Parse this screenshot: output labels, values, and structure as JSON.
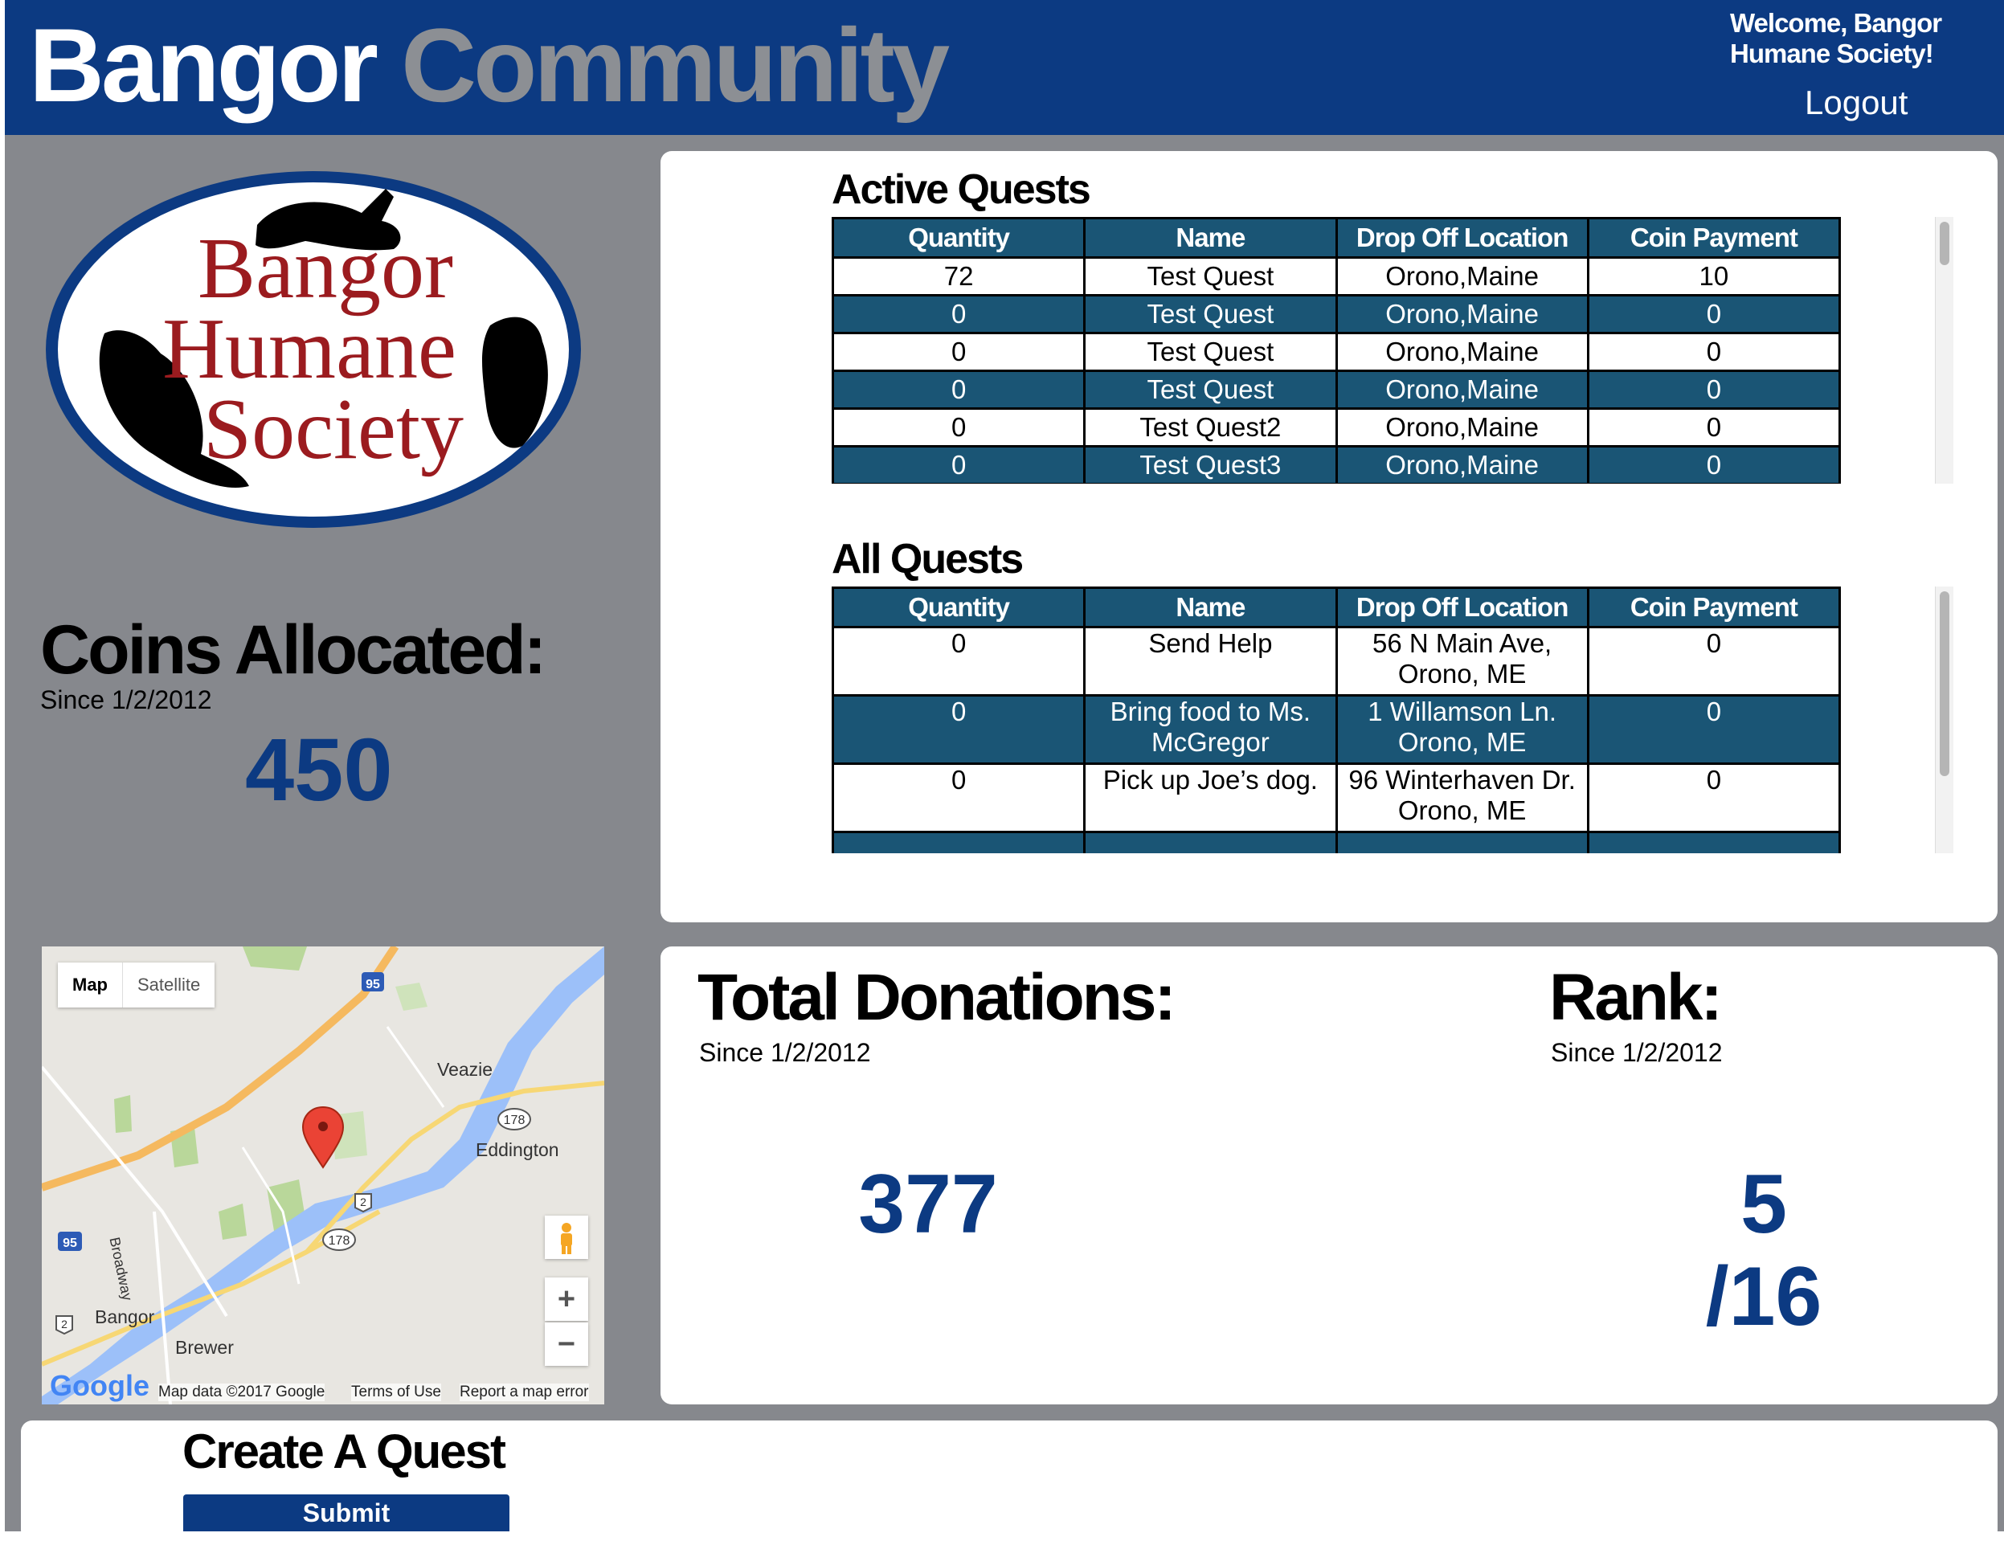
{
  "header": {
    "brand_primary": "Bangor",
    "brand_secondary": "Community",
    "welcome": "Welcome, Bangor Humane Society!",
    "logout": "Logout"
  },
  "logo": {
    "line1": "Bangor",
    "line2": "Humane",
    "line3": "Society"
  },
  "coins": {
    "title": "Coins Allocated:",
    "since": "Since 1/2/2012",
    "value": "450"
  },
  "active_quests": {
    "title": "Active Quests",
    "columns": [
      "Quantity",
      "Name",
      "Drop Off Location",
      "Coin Payment"
    ],
    "rows": [
      {
        "quantity": "72",
        "name": "Test Quest",
        "location": "Orono,Maine",
        "payment": "10"
      },
      {
        "quantity": "0",
        "name": "Test Quest",
        "location": "Orono,Maine",
        "payment": "0"
      },
      {
        "quantity": "0",
        "name": "Test Quest",
        "location": "Orono,Maine",
        "payment": "0"
      },
      {
        "quantity": "0",
        "name": "Test Quest",
        "location": "Orono,Maine",
        "payment": "0"
      },
      {
        "quantity": "0",
        "name": "Test Quest2",
        "location": "Orono,Maine",
        "payment": "0"
      },
      {
        "quantity": "0",
        "name": "Test Quest3",
        "location": "Orono,Maine",
        "payment": "0"
      }
    ]
  },
  "all_quests": {
    "title": "All Quests",
    "columns": [
      "Quantity",
      "Name",
      "Drop Off Location",
      "Coin Payment"
    ],
    "rows": [
      {
        "quantity": "0",
        "name": "Send Help",
        "location": "56 N Main Ave, Orono, ME",
        "payment": "0"
      },
      {
        "quantity": "0",
        "name": "Bring food to Ms. McGregor",
        "location": "1 Willamson Ln. Orono, ME",
        "payment": "0"
      },
      {
        "quantity": "0",
        "name": "Pick up Joe’s dog.",
        "location": "96 Winterhaven Dr. Orono, ME",
        "payment": "0"
      }
    ]
  },
  "map": {
    "type_map": "Map",
    "type_satellite": "Satellite",
    "labels": [
      "Veazie",
      "Eddington",
      "Bangor",
      "Brewer",
      "Broadway"
    ],
    "shields": [
      "95",
      "95",
      "178",
      "178",
      "2",
      "2"
    ],
    "google": "Google",
    "data": "Map data ©2017 Google",
    "terms": "Terms of Use",
    "report": "Report a map error",
    "zoom_in": "+",
    "zoom_out": "−"
  },
  "donations": {
    "title": "Total Donations:",
    "since": "Since 1/2/2012",
    "value": "377"
  },
  "rank": {
    "title": "Rank:",
    "since": "Since 1/2/2012",
    "value": "5",
    "total": "/16"
  },
  "create": {
    "title": "Create A Quest",
    "submit": "Submit"
  },
  "colors": {
    "navy": "#0c3a82",
    "teal_row": "#1a5575",
    "gray_bg": "#86888d",
    "logo_red": "#9b1b1f"
  }
}
